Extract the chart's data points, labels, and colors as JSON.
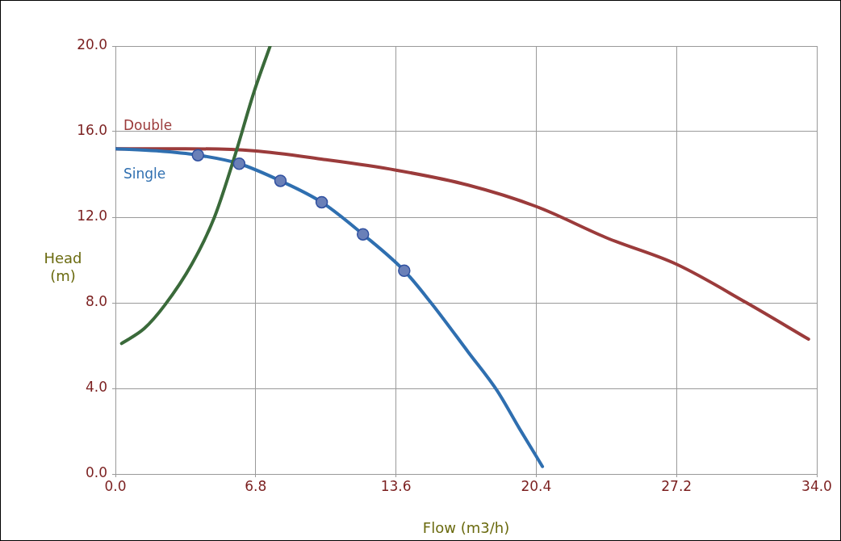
{
  "chart_data": {
    "type": "line",
    "xlabel": "Flow (m3/h)",
    "ylabel": "Head\n(m)",
    "xlim": [
      0,
      34
    ],
    "ylim": [
      0,
      20
    ],
    "xticks": [
      {
        "value": 0,
        "label": "0.0"
      },
      6.8,
      13.6,
      20.4,
      27.2,
      {
        "value": 34,
        "label": "34.0"
      }
    ],
    "yticks": [
      {
        "value": 0,
        "label": "0.0"
      },
      {
        "value": 4,
        "label": "4.0"
      },
      {
        "value": 8,
        "label": "8.0"
      },
      {
        "value": 12,
        "label": "12.0"
      },
      {
        "value": 16,
        "label": "16.0"
      },
      {
        "value": 20,
        "label": "20.0"
      }
    ],
    "grid": true,
    "legend": false,
    "marker": "none",
    "line_style": "solid",
    "series": [
      {
        "name": "Double",
        "color": "#9b3b3b",
        "x": [
          0,
          3.4,
          6.7,
          10.1,
          13.6,
          17.1,
          20.4,
          23.9,
          27.2,
          30.6,
          33.6
        ],
        "values": [
          15.2,
          15.2,
          15.1,
          14.7,
          14.2,
          13.5,
          12.5,
          11.0,
          9.8,
          8.0,
          6.3
        ]
      },
      {
        "name": "Single",
        "color": "#2f6fb0",
        "x": [
          0,
          2,
          4,
          6,
          8,
          10,
          12,
          14,
          15.3,
          17.1,
          18.5,
          19.6,
          20.7
        ],
        "values": [
          15.2,
          15.1,
          14.9,
          14.5,
          13.7,
          12.7,
          11.2,
          9.5,
          8.0,
          5.7,
          3.9,
          2.1,
          0.35
        ]
      },
      {
        "type": "scatter",
        "marker": "circle",
        "color": "#6a80b8",
        "x": [
          4,
          6,
          8,
          10,
          12,
          14
        ],
        "values": [
          14.9,
          14.5,
          13.7,
          12.7,
          11.2,
          9.5
        ]
      },
      {
        "color": "#3a6a3a",
        "x": [
          0.3,
          1.4,
          2.4,
          3.7,
          4.8,
          5.8,
          6.7,
          7.5
        ],
        "values": [
          6.1,
          6.8,
          7.9,
          9.8,
          12.0,
          14.9,
          17.8,
          20.0
        ]
      }
    ]
  }
}
